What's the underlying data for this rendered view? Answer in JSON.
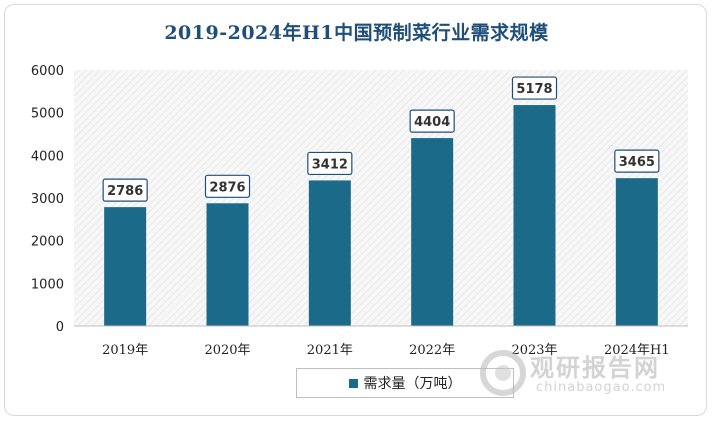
{
  "chart_data": {
    "type": "bar",
    "title": "2019-2024年H1中国预制菜行业需求规模",
    "categories": [
      "2019年",
      "2020年",
      "2021年",
      "2022年",
      "2023年",
      "2024年H1"
    ],
    "series": [
      {
        "name": "需求量（万吨）",
        "values": [
          2786,
          2876,
          3412,
          4404,
          5178,
          3465
        ]
      }
    ],
    "ylim": [
      0,
      6000
    ],
    "yticks": [
      0,
      1000,
      2000,
      3000,
      4000,
      5000,
      6000
    ],
    "data_labels": true,
    "grid": false,
    "legend_position": "bottom",
    "bar_color": "#1b6a89"
  },
  "watermark": {
    "cn": "观研报告网",
    "en": "chinabaogao.com"
  }
}
